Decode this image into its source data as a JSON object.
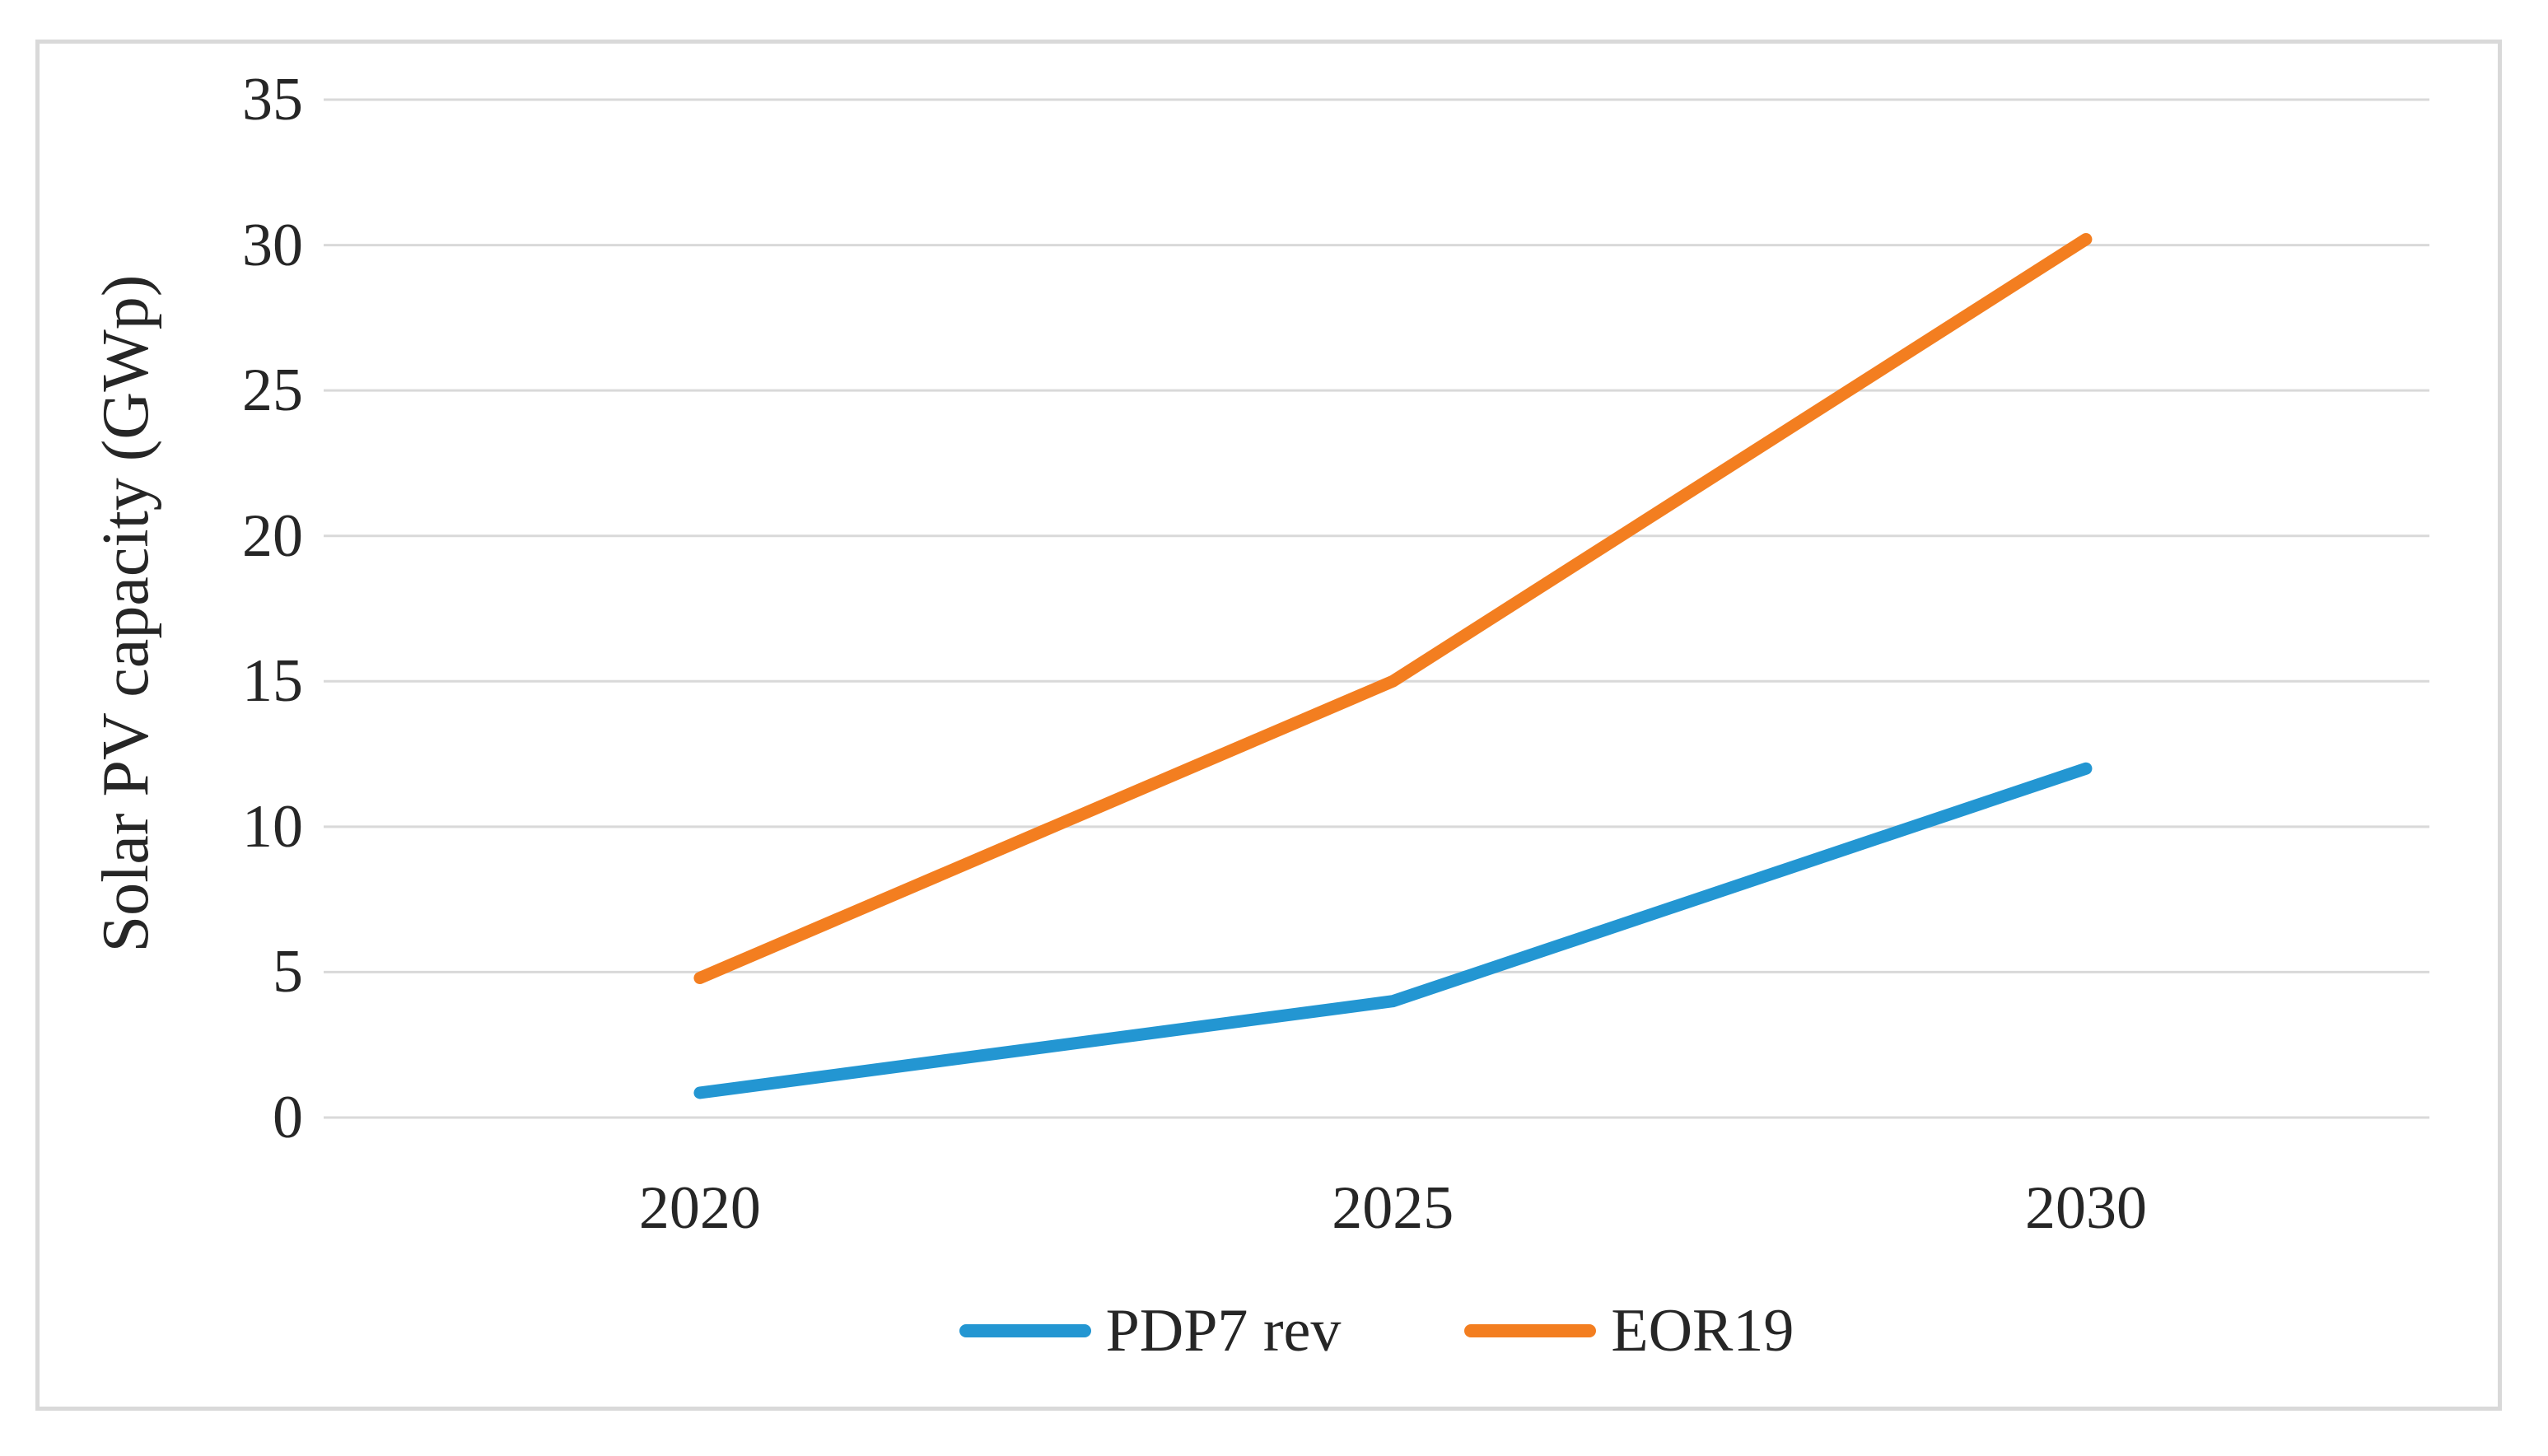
{
  "figure": {
    "background": "#ffffff",
    "border_color": "#d9d9d9"
  },
  "chart_data": {
    "type": "line",
    "title": "",
    "categories": [
      "2020",
      "2025",
      "2030"
    ],
    "series": [
      {
        "name": "PDP7 rev",
        "color": "#2396d2",
        "values": [
          0.85,
          4,
          12
        ]
      },
      {
        "name": "EOR19",
        "color": "#f37e20",
        "values": [
          4.8,
          15,
          30.2
        ]
      }
    ],
    "xlabel": "",
    "ylabel": "Solar PV capacity (GWp)",
    "y_ticks": [
      0,
      5,
      10,
      15,
      20,
      25,
      30,
      35
    ],
    "ylim": [
      0,
      35
    ],
    "grid": "horizontal-only",
    "gridline_color": "#d9d9d9",
    "axis_text_color": "#262626",
    "legend_position": "bottom"
  }
}
